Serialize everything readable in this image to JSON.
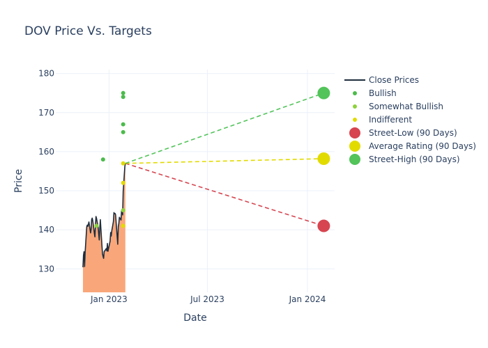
{
  "chart_data": {
    "type": "line",
    "title": "DOV Price Vs. Targets",
    "xlabel": "Date",
    "ylabel": "Price",
    "xlim": [
      "2022-09-25",
      "2024-02-20"
    ],
    "ylim": [
      124,
      181
    ],
    "grid": true,
    "legend_placement": "top-right",
    "x_ticks": [
      {
        "label": "Jan 2023",
        "date": "2023-01-01"
      },
      {
        "label": "Jul 2023",
        "date": "2023-07-01"
      },
      {
        "label": "Jan 2024",
        "date": "2024-01-01"
      }
    ],
    "y_ticks": [
      130,
      140,
      150,
      160,
      170,
      180
    ],
    "colors": {
      "close": "#1f2d3d",
      "fill": "#f9a77a",
      "bullish": "#4cbb4c",
      "somewhat_bullish": "#8fd13d",
      "indifferent": "#e2db00",
      "street_low": "#d64550",
      "average": "#e2db00",
      "street_high": "#52c45a"
    },
    "series": [
      {
        "name": "Close Prices",
        "kind": "line",
        "points": [
          [
            "2022-11-14",
            130.4
          ],
          [
            "2022-11-15",
            133.5
          ],
          [
            "2022-11-16",
            134.4
          ],
          [
            "2022-11-17",
            130.6
          ],
          [
            "2022-11-18",
            134.2
          ],
          [
            "2022-11-21",
            140.8
          ],
          [
            "2022-11-22",
            141.2
          ],
          [
            "2022-11-23",
            140.9
          ],
          [
            "2022-11-25",
            142.0
          ],
          [
            "2022-11-28",
            139.2
          ],
          [
            "2022-11-29",
            140.1
          ],
          [
            "2022-11-30",
            142.6
          ],
          [
            "2022-12-01",
            143.0
          ],
          [
            "2022-12-02",
            142.4
          ],
          [
            "2022-12-05",
            139.1
          ],
          [
            "2022-12-06",
            138.2
          ],
          [
            "2022-12-07",
            141.2
          ],
          [
            "2022-12-08",
            143.4
          ],
          [
            "2022-12-09",
            142.9
          ],
          [
            "2022-12-12",
            140.6
          ],
          [
            "2022-12-13",
            138.9
          ],
          [
            "2022-12-14",
            137.4
          ],
          [
            "2022-12-15",
            140.5
          ],
          [
            "2022-12-16",
            142.6
          ],
          [
            "2022-12-19",
            135.8
          ],
          [
            "2022-12-20",
            133.8
          ],
          [
            "2022-12-21",
            133.2
          ],
          [
            "2022-12-22",
            132.7
          ],
          [
            "2022-12-23",
            134.4
          ],
          [
            "2022-12-27",
            135.2
          ],
          [
            "2022-12-28",
            134.6
          ],
          [
            "2022-12-29",
            136.5
          ],
          [
            "2022-12-30",
            134.5
          ],
          [
            "2023-01-03",
            137.1
          ],
          [
            "2023-01-04",
            139.3
          ],
          [
            "2023-01-05",
            138.4
          ],
          [
            "2023-01-06",
            139.7
          ],
          [
            "2023-01-09",
            142.1
          ],
          [
            "2023-01-10",
            144.4
          ],
          [
            "2023-01-11",
            144.1
          ],
          [
            "2023-01-12",
            144.2
          ],
          [
            "2023-01-13",
            143.9
          ],
          [
            "2023-01-17",
            136.3
          ],
          [
            "2023-01-18",
            140.8
          ],
          [
            "2023-01-19",
            141.6
          ],
          [
            "2023-01-20",
            143.2
          ],
          [
            "2023-01-23",
            142.5
          ],
          [
            "2023-01-24",
            144.8
          ],
          [
            "2023-01-25",
            145.2
          ],
          [
            "2023-01-26",
            143.8
          ],
          [
            "2023-01-27",
            149.8
          ],
          [
            "2023-01-30",
            156.1
          ],
          [
            "2023-01-31",
            157.0
          ]
        ]
      },
      {
        "name": "Bullish",
        "kind": "markers",
        "points": [
          [
            "2022-12-21",
            158
          ],
          [
            "2023-01-27",
            175
          ],
          [
            "2023-01-27",
            174
          ],
          [
            "2023-01-27",
            167
          ],
          [
            "2023-01-27",
            165
          ]
        ]
      },
      {
        "name": "Somewhat Bullish",
        "kind": "markers",
        "points": [
          [
            "2022-12-09",
            141
          ],
          [
            "2023-01-27",
            145
          ]
        ]
      },
      {
        "name": "Indifferent",
        "kind": "markers",
        "points": [
          [
            "2023-01-27",
            157
          ],
          [
            "2023-01-27",
            152
          ],
          [
            "2023-01-27",
            141
          ]
        ]
      },
      {
        "name": "Street-Low (90 Days)",
        "kind": "target",
        "points": [
          [
            "2023-01-31",
            157.0
          ],
          [
            "2024-01-31",
            141
          ]
        ]
      },
      {
        "name": "Average Rating (90 Days)",
        "kind": "target",
        "points": [
          [
            "2023-01-31",
            157.0
          ],
          [
            "2024-01-31",
            158.2
          ]
        ]
      },
      {
        "name": "Street-High (90 Days)",
        "kind": "target",
        "points": [
          [
            "2023-01-31",
            157.0
          ],
          [
            "2024-01-31",
            175
          ]
        ]
      }
    ],
    "legend": [
      {
        "label": "Close Prices",
        "symbol": "line",
        "color": "#1f2d3d"
      },
      {
        "label": "Bullish",
        "symbol": "dot",
        "color": "#4cbb4c"
      },
      {
        "label": "Somewhat Bullish",
        "symbol": "dot",
        "color": "#8fd13d"
      },
      {
        "label": "Indifferent",
        "symbol": "dot",
        "color": "#e2db00"
      },
      {
        "label": "Street-Low (90 Days)",
        "symbol": "big-dot",
        "color": "#d64550"
      },
      {
        "label": "Average Rating (90 Days)",
        "symbol": "big-dot",
        "color": "#e2db00"
      },
      {
        "label": "Street-High (90 Days)",
        "symbol": "big-dot",
        "color": "#52c45a"
      }
    ]
  }
}
